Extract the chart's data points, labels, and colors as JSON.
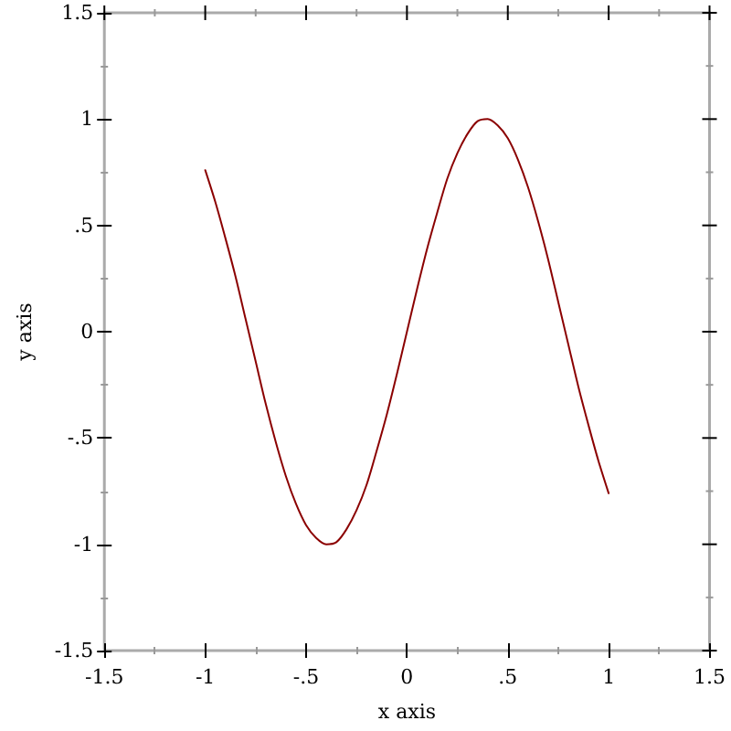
{
  "chart_data": {
    "type": "line",
    "xlabel": "x axis",
    "ylabel": "y axis",
    "x": [
      -1,
      -0.95,
      -0.9,
      -0.85,
      -0.8,
      -0.75,
      -0.7,
      -0.65,
      -0.6,
      -0.55,
      -0.5,
      -0.45,
      -0.4,
      -0.35,
      -0.3,
      -0.25,
      -0.2,
      -0.15,
      -0.1,
      -0.05,
      0,
      0.05,
      0.1,
      0.15,
      0.2,
      0.25,
      0.3,
      0.35,
      0.4,
      0.45,
      0.5,
      0.55,
      0.6,
      0.65,
      0.7,
      0.75,
      0.8,
      0.85,
      0.9,
      0.95,
      1
    ],
    "series": [
      {
        "color": "#8b0000",
        "values": [
          0.76,
          0.61,
          0.44,
          0.26,
          0.06,
          -0.14,
          -0.34,
          -0.52,
          -0.68,
          -0.81,
          -0.91,
          -0.97,
          -1.0,
          -0.99,
          -0.93,
          -0.84,
          -0.72,
          -0.56,
          -0.39,
          -0.2,
          0,
          0.2,
          0.39,
          0.56,
          0.72,
          0.84,
          0.93,
          0.99,
          1.0,
          0.97,
          0.91,
          0.81,
          0.68,
          0.52,
          0.34,
          0.14,
          -0.06,
          -0.26,
          -0.44,
          -0.61,
          -0.76
        ]
      }
    ],
    "xlim": [
      -1.5,
      1.5
    ],
    "ylim": [
      -1.5,
      1.5
    ],
    "xticks": [
      -1.5,
      {
        "value": -1.25,
        "label": null
      },
      -1,
      {
        "value": -0.75,
        "label": null
      },
      {
        "value": -0.5,
        "label": "-.5"
      },
      {
        "value": -0.25,
        "label": null
      },
      0,
      {
        "value": 0.25,
        "label": null
      },
      {
        "value": 0.5,
        "label": ".5"
      },
      {
        "value": 0.75,
        "label": null
      },
      1,
      {
        "value": 1.25,
        "label": null
      },
      1.5
    ],
    "yticks": [
      -1.5,
      {
        "value": -1.25,
        "label": null
      },
      -1,
      {
        "value": -0.75,
        "label": null
      },
      {
        "value": -0.5,
        "label": "-.5"
      },
      {
        "value": -0.25,
        "label": null
      },
      0,
      {
        "value": 0.25,
        "label": null
      },
      {
        "value": 0.5,
        "label": ".5"
      },
      {
        "value": 0.75,
        "label": null
      },
      1,
      {
        "value": 1.25,
        "label": null
      },
      1.5
    ],
    "marker": "none",
    "line_style": "solid"
  }
}
